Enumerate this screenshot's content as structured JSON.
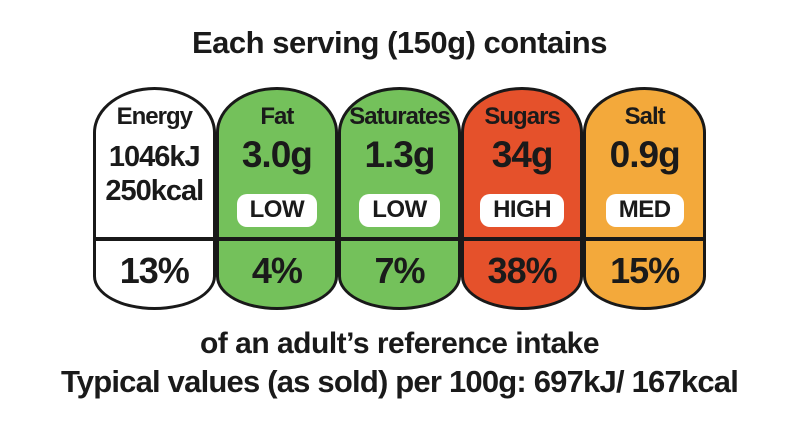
{
  "label": {
    "title": "Each serving (150g) contains",
    "footer_line1": "of an adult’s reference intake",
    "footer_line2": "Typical values (as sold) per 100g: 697kJ/ 167kcal"
  },
  "columns": [
    {
      "name": "Energy",
      "value_kj": "1046kJ",
      "value_kcal": "250kcal",
      "percent": "13%",
      "color": "#FFFFFF"
    },
    {
      "name": "Fat",
      "value": "3.0g",
      "level": "LOW",
      "percent": "4%",
      "color": "#74C15B"
    },
    {
      "name": "Saturates",
      "value": "1.3g",
      "level": "LOW",
      "percent": "7%",
      "color": "#74C15B"
    },
    {
      "name": "Sugars",
      "value": "34g",
      "level": "HIGH",
      "percent": "38%",
      "color": "#E5512B"
    },
    {
      "name": "Salt",
      "value": "0.9g",
      "level": "MED",
      "percent": "15%",
      "color": "#F3A93B"
    }
  ],
  "colors": {
    "outline": "#191919",
    "text": "#1A1A1A",
    "badge_background": "#FFFFFF",
    "badge_text": "#1A1A1A",
    "page_background": "#FFFFFF"
  }
}
